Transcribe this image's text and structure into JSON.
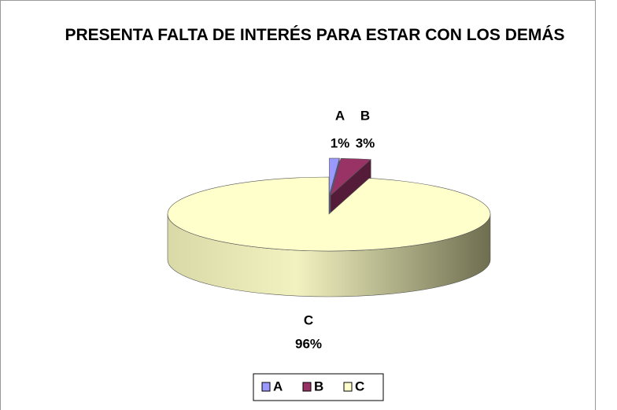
{
  "chart_data": {
    "type": "pie",
    "title": "PRESENTA FALTA DE INTERÉS PARA ESTAR CON LOS DEMÁS",
    "categories": [
      "A",
      "B",
      "C"
    ],
    "values": [
      1,
      3,
      96
    ],
    "value_labels": [
      "1%",
      "3%",
      "96%"
    ],
    "colors": [
      "#9999ff",
      "#993366",
      "#ffffcc"
    ],
    "legend": "bottom"
  }
}
